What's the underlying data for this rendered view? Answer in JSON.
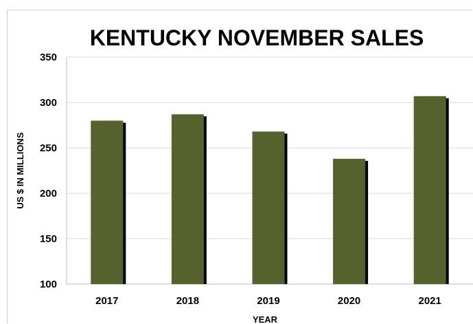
{
  "chart_data": {
    "type": "bar",
    "title": "KENTUCKY NOVEMBER SALES",
    "xlabel": "YEAR",
    "ylabel": "US $ IN MILLIONS",
    "categories": [
      "2017",
      "2018",
      "2019",
      "2020",
      "2021"
    ],
    "values": [
      280,
      287,
      268,
      238,
      307
    ],
    "ylim": [
      100,
      350
    ],
    "yticks": [
      "100",
      "150",
      "200",
      "250",
      "300",
      "350"
    ],
    "grid": true,
    "legend": "none",
    "colors": {
      "bar": "#56622e",
      "shadow": "#000000"
    }
  }
}
